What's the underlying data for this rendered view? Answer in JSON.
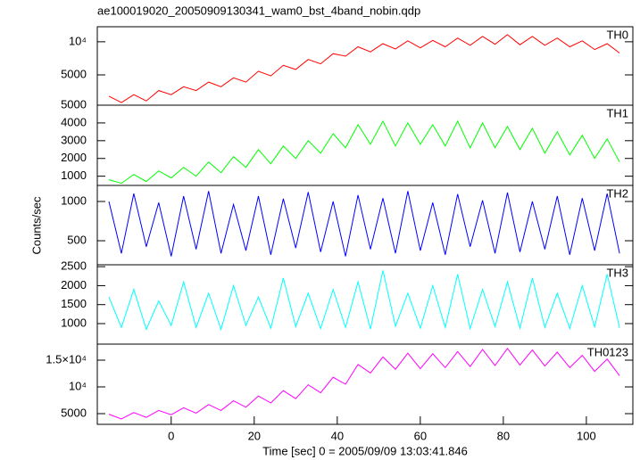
{
  "chart_data": [
    {
      "type": "line",
      "title": "ae100019020_20050909130341_wam0_bst_4band_nobin.qdp",
      "label": "TH0",
      "color": "#ff0000",
      "log": true,
      "xlim": [
        -17.8,
        111.2
      ],
      "ylim": [
        2650,
        13700
      ],
      "yticks": [
        5000,
        {
          "value": 10000,
          "label": "10⁴"
        }
      ],
      "x": [
        -15,
        -12,
        -9,
        -6,
        -3,
        0,
        3,
        6,
        9,
        12,
        15,
        18,
        21,
        24,
        27,
        30,
        33,
        36,
        39,
        42,
        45,
        48,
        51,
        54,
        57,
        60,
        63,
        66,
        69,
        72,
        75,
        78,
        81,
        84,
        87,
        90,
        93,
        96,
        99,
        102,
        105,
        108
      ],
      "values": [
        3200,
        2800,
        3300,
        2900,
        3600,
        3300,
        3900,
        3600,
        4300,
        3900,
        4700,
        4300,
        5400,
        4900,
        6100,
        5600,
        6900,
        6300,
        7800,
        7400,
        9000,
        8100,
        9600,
        8600,
        10200,
        8800,
        10300,
        9000,
        10800,
        9300,
        11200,
        9500,
        11600,
        9400,
        11200,
        9300,
        10800,
        9000,
        10200,
        8500,
        9600,
        7900
      ]
    },
    {
      "type": "line",
      "label": "TH1",
      "color": "#00ff00",
      "log": false,
      "xlim": [
        -17.8,
        111.2
      ],
      "ylim": [
        480,
        5000
      ],
      "yticks": [
        1000,
        2000,
        3000,
        4000,
        5000
      ],
      "x": [
        -15,
        -12,
        -9,
        -6,
        -3,
        0,
        3,
        6,
        9,
        12,
        15,
        18,
        21,
        24,
        27,
        30,
        33,
        36,
        39,
        42,
        45,
        48,
        51,
        54,
        57,
        60,
        63,
        66,
        69,
        72,
        75,
        78,
        81,
        84,
        87,
        90,
        93,
        96,
        99,
        102,
        105,
        108
      ],
      "values": [
        800,
        600,
        1100,
        700,
        1300,
        900,
        1500,
        1000,
        1800,
        1200,
        2100,
        1500,
        2500,
        1700,
        2700,
        2000,
        3000,
        2300,
        3400,
        2600,
        3900,
        2800,
        4100,
        2700,
        4000,
        2800,
        3900,
        2700,
        4100,
        2600,
        4000,
        2600,
        3800,
        2500,
        3700,
        2300,
        3500,
        2200,
        3300,
        2000,
        3100,
        1800
      ]
    },
    {
      "type": "line",
      "label": "TH2",
      "color": "#0000ff",
      "log": true,
      "ylabel": "Counts/sec",
      "xlim": [
        -17.8,
        111.2
      ],
      "ylim": [
        327,
        1328
      ],
      "yticks": [
        500,
        1000
      ],
      "x": [
        -15,
        -12,
        -9,
        -6,
        -3,
        0,
        3,
        6,
        9,
        12,
        15,
        18,
        21,
        24,
        27,
        30,
        33,
        36,
        39,
        42,
        45,
        48,
        51,
        54,
        57,
        60,
        63,
        66,
        69,
        72,
        75,
        78,
        81,
        84,
        87,
        90,
        93,
        96,
        99,
        102,
        105,
        108
      ],
      "values": [
        1000,
        400,
        1150,
        450,
        980,
        380,
        1100,
        430,
        1200,
        400,
        950,
        420,
        1100,
        390,
        1050,
        440,
        1180,
        410,
        1000,
        380,
        1120,
        430,
        1060,
        400,
        1200,
        420,
        980,
        390,
        1140,
        450,
        1020,
        400,
        1170,
        410,
        1000,
        430,
        1100,
        390,
        1060,
        420,
        1150,
        400
      ]
    },
    {
      "type": "line",
      "label": "TH3",
      "color": "#00ffff",
      "log": false,
      "xlim": [
        -17.8,
        111.2
      ],
      "ylim": [
        460,
        2550
      ],
      "yticks": [
        1000,
        1500,
        2000,
        2500
      ],
      "x": [
        -15,
        -12,
        -9,
        -6,
        -3,
        0,
        3,
        6,
        9,
        12,
        15,
        18,
        21,
        24,
        27,
        30,
        33,
        36,
        39,
        42,
        45,
        48,
        51,
        54,
        57,
        60,
        63,
        66,
        69,
        72,
        75,
        78,
        81,
        84,
        87,
        90,
        93,
        96,
        99,
        102,
        105,
        108
      ],
      "values": [
        1700,
        900,
        1900,
        850,
        1600,
        950,
        2100,
        900,
        1800,
        850,
        2000,
        950,
        1700,
        880,
        2200,
        920,
        1800,
        870,
        1900,
        900,
        2100,
        860,
        2400,
        930,
        1800,
        880,
        2000,
        900,
        2300,
        870,
        1900,
        920,
        2100,
        880,
        2200,
        900,
        1800,
        870,
        2000,
        910,
        2300,
        890
      ]
    },
    {
      "type": "line",
      "label": "TH0123",
      "color": "#ff00ff",
      "log": false,
      "xlabel": "Time [sec] 0 = 2005/09/09 13:03:41.846",
      "xlim": [
        -17.8,
        111.2
      ],
      "xticks": [
        0,
        20,
        40,
        60,
        80,
        100
      ],
      "ylim": [
        3000,
        18000
      ],
      "yticks": [
        5000,
        {
          "value": 10000,
          "label": "10⁴"
        },
        {
          "value": 15000,
          "label": "1.5×10⁴"
        }
      ],
      "x": [
        -15,
        -12,
        -9,
        -6,
        -3,
        0,
        3,
        6,
        9,
        12,
        15,
        18,
        21,
        24,
        27,
        30,
        33,
        36,
        39,
        42,
        45,
        48,
        51,
        54,
        57,
        60,
        63,
        66,
        69,
        72,
        75,
        78,
        81,
        84,
        87,
        90,
        93,
        96,
        99,
        102,
        105,
        108
      ],
      "values": [
        4900,
        4000,
        5200,
        4300,
        5600,
        4800,
        6100,
        5100,
        6700,
        5600,
        7400,
        6200,
        8300,
        7000,
        9300,
        7800,
        10400,
        8900,
        11800,
        10500,
        14200,
        12600,
        15600,
        13300,
        16300,
        13400,
        16200,
        13600,
        16600,
        13800,
        17000,
        14000,
        17200,
        14100,
        16900,
        13900,
        16500,
        13600,
        15900,
        12900,
        15200,
        12100
      ]
    }
  ]
}
